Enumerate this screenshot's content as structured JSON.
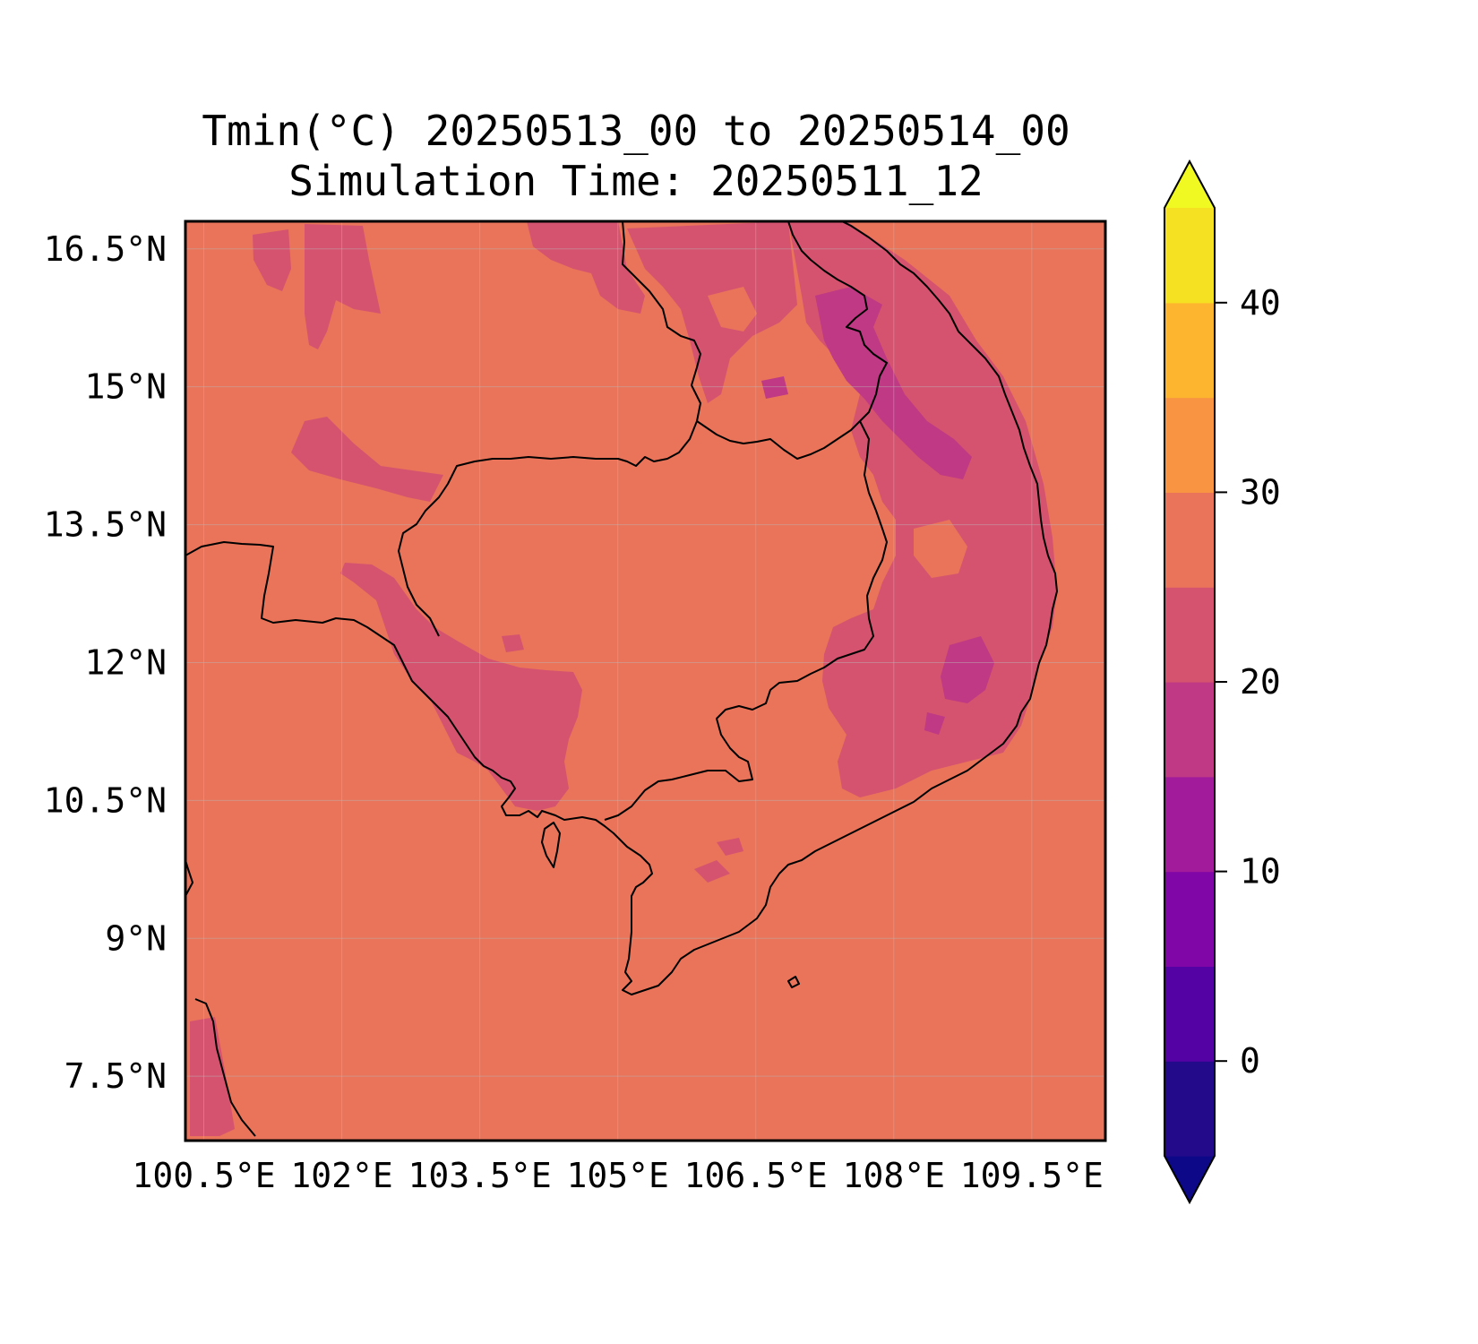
{
  "title": {
    "line1": "Tmin(°C) 20250513_00 to 20250514_00",
    "line2": "Simulation Time: 20250511_12"
  },
  "map": {
    "region": "Cambodia / Southern Vietnam / Gulf of Thailand",
    "lon_range": [
      100.3,
      110.3
    ],
    "lat_range": [
      6.8,
      16.8
    ],
    "gridlines": true,
    "x_ticks": [
      {
        "value": 100.5,
        "label": "100.5°E"
      },
      {
        "value": 102,
        "label": "102°E"
      },
      {
        "value": 103.5,
        "label": "103.5°E"
      },
      {
        "value": 105,
        "label": "105°E"
      },
      {
        "value": 106.5,
        "label": "106.5°E"
      },
      {
        "value": 108,
        "label": "108°E"
      },
      {
        "value": 109.5,
        "label": "109.5°E"
      }
    ],
    "y_ticks": [
      {
        "value": 16.5,
        "label": "16.5°N"
      },
      {
        "value": 15,
        "label": "15°N"
      },
      {
        "value": 13.5,
        "label": "13.5°N"
      },
      {
        "value": 12,
        "label": "12°N"
      },
      {
        "value": 10.5,
        "label": "10.5°N"
      },
      {
        "value": 9,
        "label": "9°N"
      },
      {
        "value": 7.5,
        "label": "7.5°N"
      }
    ],
    "background_level_color": "#e9745a"
  },
  "colorbar": {
    "range": [
      -5,
      45
    ],
    "extend": "both",
    "ticks": [
      {
        "value": 0,
        "label": "0"
      },
      {
        "value": 10,
        "label": "10"
      },
      {
        "value": 20,
        "label": "20"
      },
      {
        "value": 30,
        "label": "30"
      },
      {
        "value": 40,
        "label": "40"
      }
    ],
    "levels": [
      {
        "from": -5,
        "to": 0,
        "color": "#230a8a"
      },
      {
        "from": 0,
        "to": 5,
        "color": "#5502a4"
      },
      {
        "from": 5,
        "to": 10,
        "color": "#8106a7"
      },
      {
        "from": 10,
        "to": 15,
        "color": "#a11b9b"
      },
      {
        "from": 15,
        "to": 20,
        "color": "#bf3984"
      },
      {
        "from": 20,
        "to": 25,
        "color": "#d5536f"
      },
      {
        "from": 25,
        "to": 30,
        "color": "#e9745a"
      },
      {
        "from": 30,
        "to": 35,
        "color": "#f89442"
      },
      {
        "from": 35,
        "to": 40,
        "color": "#fdb42f"
      },
      {
        "from": 40,
        "to": 45,
        "color": "#f5e022"
      }
    ],
    "under_color": "#0d0887",
    "over_color": "#f0f921"
  }
}
